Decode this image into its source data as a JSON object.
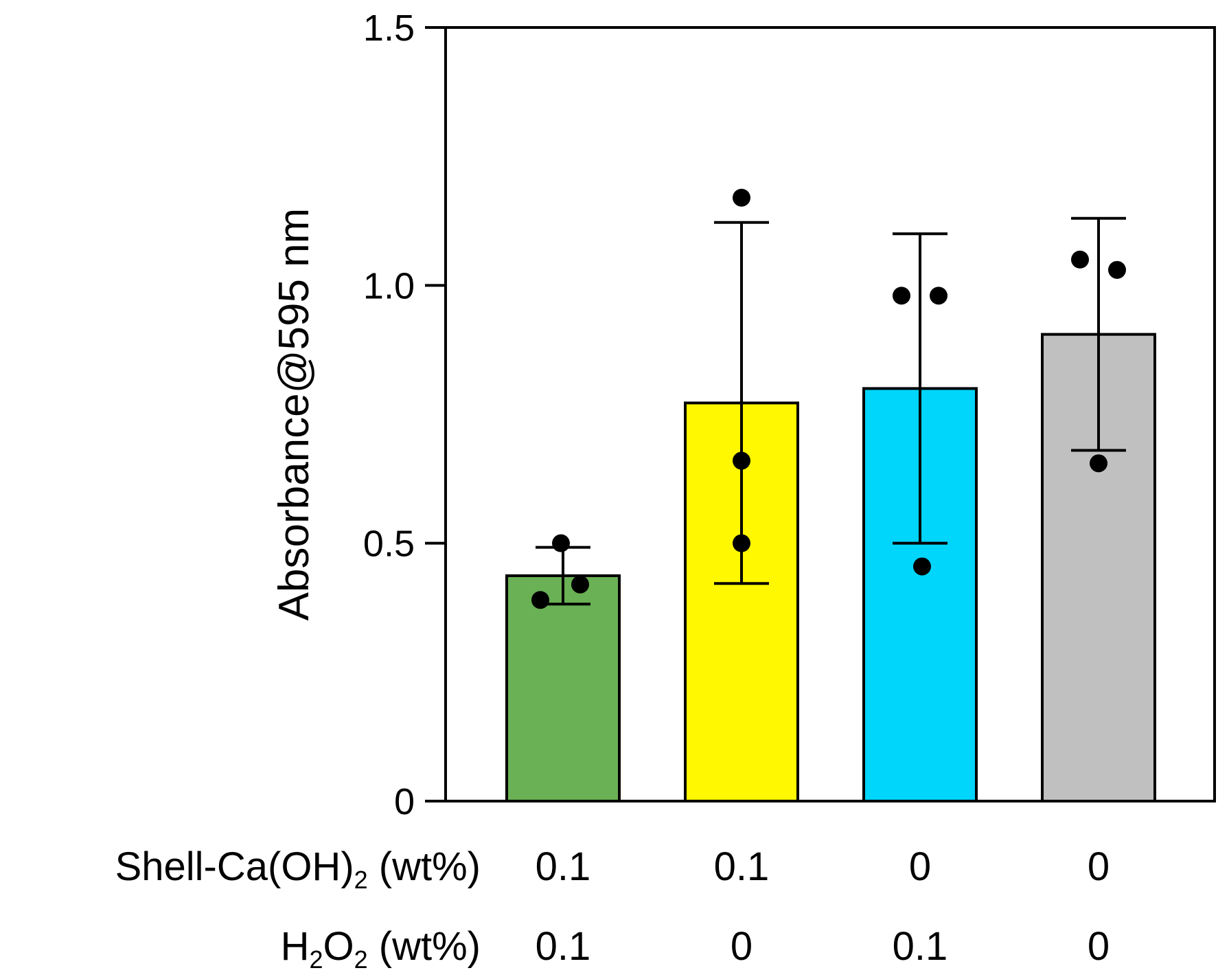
{
  "chart_data": {
    "type": "bar",
    "ylabel": "Absorbance@595 nm",
    "ylim": [
      0,
      1.5
    ],
    "yticks": [
      {
        "value": 0,
        "label": "0"
      },
      {
        "value": 0.5,
        "label": "0.5"
      },
      {
        "value": 1.0,
        "label": "1.0"
      },
      {
        "value": 1.5,
        "label": "1.5"
      }
    ],
    "bars": [
      {
        "value": 0.437,
        "error": 0.055,
        "color": "#6ab155",
        "points": [
          0.5,
          0.39,
          0.42
        ]
      },
      {
        "value": 0.772,
        "error": 0.35,
        "color": "#fff800",
        "points": [
          1.17,
          0.66,
          0.5
        ]
      },
      {
        "value": 0.8,
        "error": 0.3,
        "color": "#00d5fb",
        "points": [
          0.98,
          0.98,
          0.455
        ]
      },
      {
        "value": 0.905,
        "error": 0.225,
        "color": "#c0c0c0",
        "points": [
          1.05,
          1.03,
          0.655
        ]
      }
    ],
    "conditions": [
      {
        "label_main": "Shell-Ca(OH)",
        "label_sub": "2",
        "label_unit": " (wt%)",
        "values": [
          "0.1",
          "0.1",
          "0",
          "0"
        ]
      },
      {
        "label_main": "H",
        "label_sub": "2",
        "label_mid": "O",
        "label_sub2": "2",
        "label_unit": " (wt%)",
        "values": [
          "0.1",
          "0",
          "0.1",
          "0"
        ]
      }
    ]
  }
}
